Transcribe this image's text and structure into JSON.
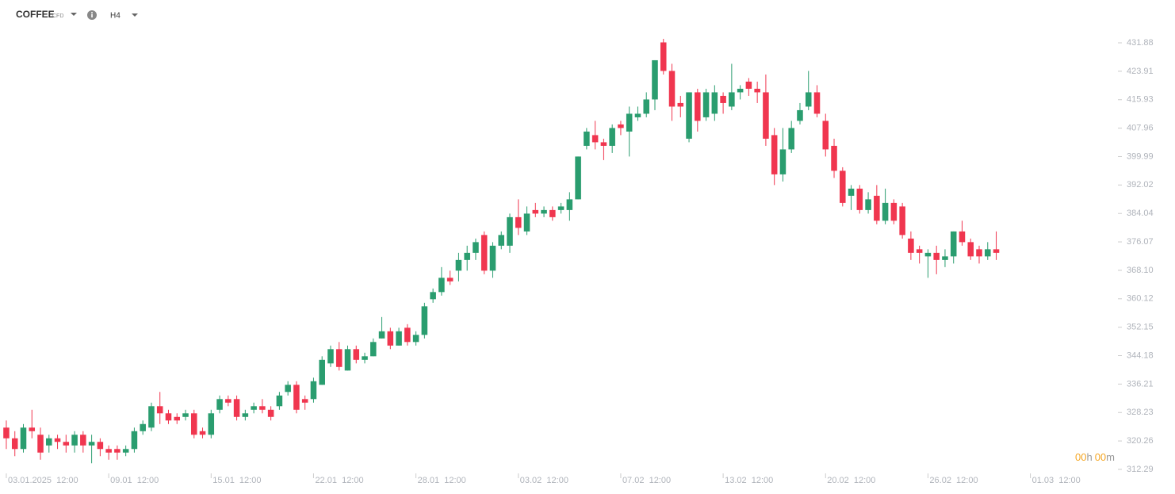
{
  "header": {
    "symbol": "COFFEE",
    "kind": "CFD",
    "interval": "H4"
  },
  "countdown": {
    "hours": "00",
    "hours_unit": "h",
    "minutes": "00",
    "minutes_unit": "m"
  },
  "chart_data": {
    "type": "candlestick",
    "up_color": "#2a9d6f",
    "down_color": "#f0364f",
    "open": [
      324,
      321,
      318,
      324,
      322,
      319,
      321,
      320,
      319,
      322,
      319,
      320,
      318,
      318,
      317,
      318,
      323,
      324,
      330,
      328,
      327,
      327,
      328,
      323,
      322,
      329,
      332,
      332,
      327,
      329,
      330,
      329,
      330,
      334,
      336,
      332,
      332,
      336,
      342,
      346,
      340,
      346,
      343,
      344,
      349,
      351,
      347,
      352,
      348,
      350,
      360,
      362,
      366,
      368,
      371,
      373,
      378,
      368,
      375,
      375,
      383,
      379,
      385,
      384,
      385,
      385,
      385,
      388,
      403,
      406,
      404,
      403,
      409,
      407,
      411,
      412,
      416,
      432,
      424,
      415,
      405,
      418,
      411,
      412,
      417,
      414,
      418,
      421,
      419,
      418,
      406,
      395,
      402,
      410,
      414,
      418,
      410,
      403,
      396,
      389,
      391,
      385,
      389,
      382,
      387,
      386,
      377,
      374,
      372,
      373,
      371,
      372,
      379,
      376,
      374,
      372,
      374
    ],
    "high": [
      326,
      323,
      325,
      329,
      324,
      322,
      322,
      322,
      323,
      323,
      322,
      321,
      319,
      319,
      319,
      324,
      326,
      331,
      334,
      329,
      328,
      329,
      329,
      324,
      329,
      333,
      333,
      333,
      329,
      331,
      332,
      330,
      334,
      337,
      337,
      333,
      338,
      344,
      347,
      348,
      347,
      347,
      345,
      349,
      355,
      352,
      352,
      353,
      351,
      359,
      363,
      369,
      368,
      373,
      375,
      377,
      379,
      376,
      379,
      384,
      388,
      386,
      387,
      386,
      386,
      387,
      390,
      400,
      408,
      410,
      405,
      409,
      410,
      414,
      414,
      418,
      427,
      433,
      426,
      417,
      418,
      419,
      419,
      420,
      418,
      426,
      420,
      422,
      421,
      423,
      408,
      408,
      410,
      415,
      424,
      420,
      412,
      405,
      397,
      392,
      392,
      390,
      392,
      391,
      388,
      387,
      379,
      375,
      374,
      375,
      374,
      379,
      382,
      377,
      375,
      376,
      379
    ],
    "low": [
      318,
      316,
      317,
      321,
      315,
      317,
      318,
      317,
      317,
      317,
      314,
      316,
      315,
      315,
      316,
      317,
      322,
      323,
      325,
      325,
      325,
      326,
      321,
      321,
      321,
      328,
      330,
      326,
      326,
      328,
      328,
      326,
      329,
      333,
      328,
      329,
      331,
      336,
      341,
      340,
      340,
      342,
      342,
      344,
      349,
      346,
      347,
      347,
      347,
      349,
      359,
      361,
      364,
      365,
      368,
      371,
      367,
      366,
      374,
      373,
      378,
      378,
      383,
      383,
      382,
      384,
      382,
      388,
      402,
      402,
      399,
      401,
      406,
      400,
      410,
      411,
      413,
      423,
      410,
      411,
      404,
      407,
      410,
      410,
      412,
      413,
      416,
      417,
      415,
      403,
      392,
      393,
      401,
      409,
      413,
      411,
      400,
      394,
      386,
      385,
      384,
      384,
      381,
      381,
      381,
      377,
      371,
      370,
      366,
      367,
      369,
      370,
      375,
      371,
      370,
      371,
      371
    ],
    "close": [
      321,
      318,
      324,
      323,
      317,
      321,
      320,
      319,
      322,
      319,
      320,
      318,
      317,
      317,
      318,
      323,
      325,
      330,
      328,
      326,
      326,
      328,
      322,
      322,
      328,
      332,
      331,
      327,
      328,
      330,
      329,
      327,
      333,
      336,
      329,
      331,
      337,
      343,
      346,
      341,
      346,
      343,
      344,
      348,
      351,
      347,
      351,
      348,
      350,
      358,
      362,
      366,
      365,
      371,
      373,
      376,
      368,
      375,
      378,
      383,
      380,
      384,
      384,
      385,
      383,
      386,
      388,
      400,
      407,
      404,
      403,
      408,
      408,
      412,
      412,
      416,
      427,
      424,
      414,
      414,
      418,
      410,
      418,
      418,
      415,
      418,
      419,
      419,
      418,
      405,
      395,
      402,
      408,
      413,
      418,
      412,
      402,
      396,
      387,
      391,
      385,
      388,
      382,
      387,
      382,
      378,
      373,
      373,
      373,
      371,
      372,
      379,
      376,
      372,
      372,
      374,
      373
    ],
    "xlim": [
      -0.74,
      128.4
    ],
    "xticks": [
      {
        "value": 0,
        "label": "03.01.2025  12:00"
      },
      {
        "value": 12,
        "label": "09.01  12:00"
      },
      {
        "value": 24,
        "label": "15.01  12:00"
      },
      {
        "value": 36,
        "label": "22.01  12:00"
      },
      {
        "value": 48,
        "label": "28.01  12:00"
      },
      {
        "value": 60,
        "label": "03.02  12:00"
      },
      {
        "value": 72,
        "label": "07.02  12:00"
      },
      {
        "value": 84,
        "label": "13.02  12:00"
      },
      {
        "value": 96,
        "label": "20.02  12:00"
      },
      {
        "value": 108,
        "label": "26.02  12:00"
      },
      {
        "value": 120,
        "label": "01.03  12:00"
      }
    ],
    "ylim": [
      310.5,
      439.44
    ],
    "yticks": [
      312.29,
      320.26,
      328.23,
      336.21,
      344.18,
      352.15,
      360.12,
      {
        "value": 368.1,
        "label": "368.10"
      },
      376.07,
      384.04,
      392.02,
      399.99,
      407.96,
      415.93,
      423.91,
      431.88
    ]
  }
}
